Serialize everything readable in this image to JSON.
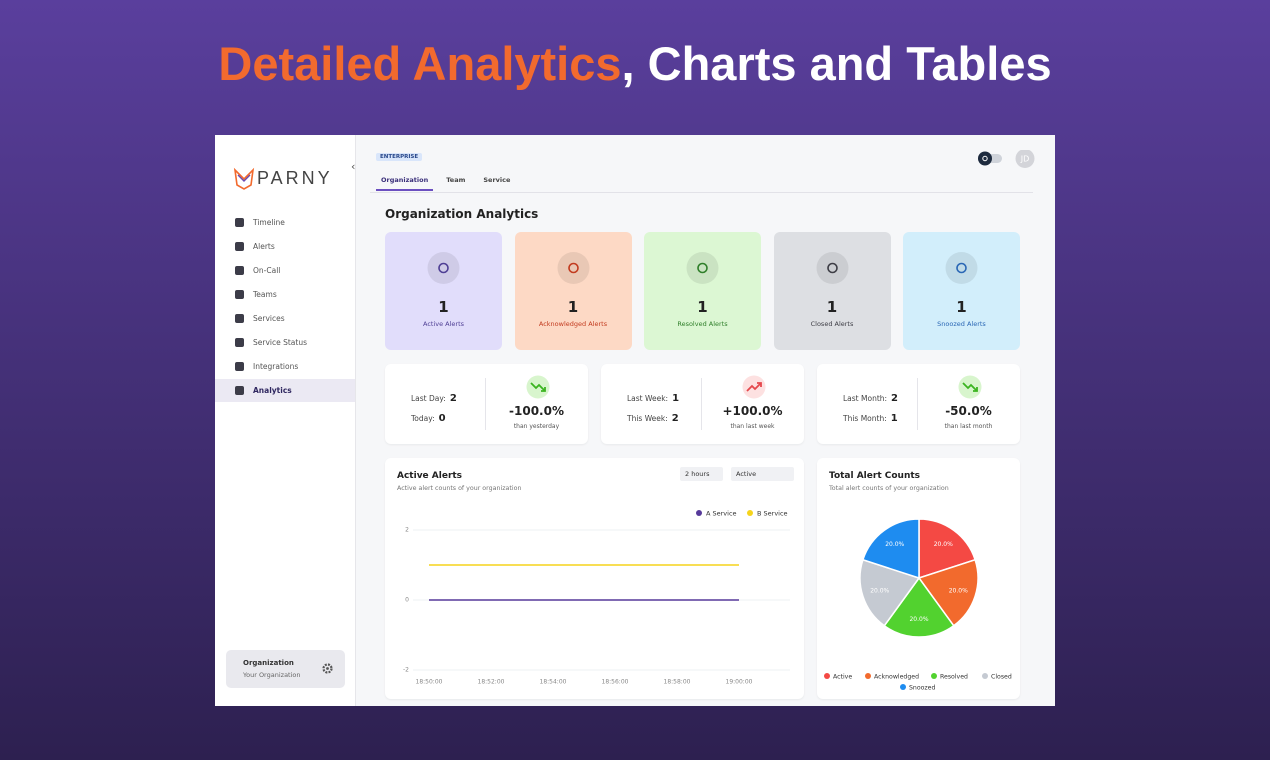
{
  "headline": {
    "highlight": "Detailed Analytics",
    "rest": ", Charts and Tables"
  },
  "sidebar": {
    "logo": "PARNY",
    "nav": [
      "Timeline",
      "Alerts",
      "On-Call",
      "Teams",
      "Services",
      "Service Status",
      "Integrations",
      "Analytics"
    ],
    "organization": {
      "name": "Organization",
      "subtitle": "Your Organization"
    }
  },
  "header": {
    "plan": "ENTERPRISE",
    "tabs": [
      "Organization",
      "Team",
      "Service"
    ],
    "avatar": "JD"
  },
  "page_title": "Organization Analytics",
  "stat_cards": [
    {
      "value": 1,
      "label": "Active Alerts",
      "color": "#e1ddfb",
      "accent": "#4f3f95"
    },
    {
      "value": 1,
      "label": "Acknowledged Alerts",
      "color": "#fdd9c5",
      "accent": "#c23b1f"
    },
    {
      "value": 1,
      "label": "Resolved Alerts",
      "color": "#dcf7d3",
      "accent": "#2f7f2a"
    },
    {
      "value": 1,
      "label": "Closed Alerts",
      "color": "#dddfe3",
      "accent": "#3d3d45"
    },
    {
      "value": 1,
      "label": "Snoozed Alerts",
      "color": "#d2eefb",
      "accent": "#2a67b5"
    }
  ],
  "comparisons": [
    {
      "rows": [
        {
          "label": "Last Day:",
          "value": 2
        },
        {
          "label": "Today:",
          "value": 0
        }
      ],
      "change": "-100.0%",
      "caption": "than yesterday",
      "trend": "down"
    },
    {
      "rows": [
        {
          "label": "Last Week:",
          "value": 1
        },
        {
          "label": "This Week:",
          "value": 2
        }
      ],
      "change": "+100.0%",
      "caption": "than last week",
      "trend": "up"
    },
    {
      "rows": [
        {
          "label": "Last Month:",
          "value": 2
        },
        {
          "label": "This Month:",
          "value": 1
        }
      ],
      "change": "-50.0%",
      "caption": "than last month",
      "trend": "down"
    }
  ],
  "chart_data": [
    {
      "type": "line",
      "title": "Active Alerts",
      "subtitle": "Active alert counts of your organization",
      "controls": [
        "2 hours",
        "Active"
      ],
      "categories": [
        "18:50:00",
        "18:52:00",
        "18:54:00",
        "18:56:00",
        "18:58:00",
        "19:00:00"
      ],
      "series": [
        {
          "name": "A Service",
          "color": "#56399a",
          "values": [
            0,
            0,
            0,
            0,
            0,
            0
          ]
        },
        {
          "name": "B Service",
          "color": "#f6d41c",
          "values": [
            1,
            1,
            1,
            1,
            1,
            1
          ]
        }
      ],
      "ylim": [
        -2,
        2
      ],
      "yticks": [
        -2,
        0,
        2
      ],
      "grid": true
    },
    {
      "type": "pie",
      "title": "Total Alert Counts",
      "subtitle": "Total alert counts of your organization",
      "categories": [
        "Active",
        "Acknowledged",
        "Resolved",
        "Closed",
        "Snoozed"
      ],
      "values": [
        20,
        20,
        20,
        20,
        20
      ],
      "value_labels": [
        "20.0%",
        "20.0%",
        "20.0%",
        "20.0%",
        "20.0%"
      ],
      "colors": [
        "#f44944",
        "#f26a2d",
        "#52d22f",
        "#c5cad2",
        "#1e8cf0"
      ]
    }
  ]
}
